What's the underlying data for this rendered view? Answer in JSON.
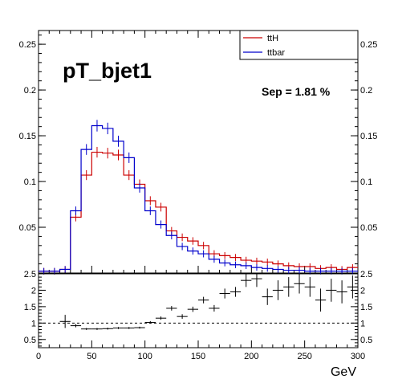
{
  "chart_data": [
    {
      "type": "line",
      "step": true,
      "title": "pT_bjet1",
      "annotation": "Sep = 1.81 %",
      "xlim": [
        0,
        300
      ],
      "ylim": [
        0,
        0.265
      ],
      "yticks": [
        "0.05",
        "0.1",
        "0.15",
        "0.2",
        "0.25"
      ],
      "yticks_right": [
        "0.05",
        "0.1",
        "0.15",
        "0.2",
        "0.25"
      ],
      "legend_position": "top-right",
      "bin_edges": [
        0,
        10,
        20,
        30,
        40,
        50,
        60,
        70,
        80,
        90,
        100,
        110,
        120,
        130,
        140,
        150,
        160,
        170,
        180,
        190,
        200,
        210,
        220,
        230,
        240,
        250,
        260,
        270,
        280,
        290,
        300
      ],
      "series": [
        {
          "name": "ttH",
          "color": "#cc0000",
          "values": [
            0.002,
            0.002,
            0.004,
            0.061,
            0.107,
            0.132,
            0.131,
            0.129,
            0.107,
            0.097,
            0.079,
            0.072,
            0.046,
            0.039,
            0.035,
            0.03,
            0.021,
            0.019,
            0.017,
            0.014,
            0.013,
            0.012,
            0.01,
            0.008,
            0.007,
            0.007,
            0.005,
            0.006,
            0.004,
            0.006
          ]
        },
        {
          "name": "ttbar",
          "color": "#0000cc",
          "values": [
            0.002,
            0.002,
            0.004,
            0.068,
            0.135,
            0.161,
            0.158,
            0.144,
            0.126,
            0.093,
            0.068,
            0.053,
            0.041,
            0.029,
            0.024,
            0.021,
            0.015,
            0.011,
            0.009,
            0.008,
            0.006,
            0.005,
            0.004,
            0.003,
            0.003,
            0.002,
            0.002,
            0.002,
            0.002,
            0.002
          ]
        }
      ]
    },
    {
      "type": "scatter",
      "title": "",
      "xlabel": "GeV",
      "xlim": [
        0,
        300
      ],
      "ylim": [
        0.25,
        2.5
      ],
      "xticks": [
        "0",
        "50",
        "100",
        "150",
        "200",
        "250",
        "300"
      ],
      "yticks": [
        "0.5",
        "1",
        "1.5",
        "2",
        "2.5"
      ],
      "yticks_right": [
        "0.5",
        "1",
        "1.5",
        "2",
        "2.5"
      ],
      "reference_line": 1,
      "x": [
        25,
        35,
        45,
        55,
        65,
        75,
        85,
        95,
        105,
        115,
        125,
        135,
        145,
        155,
        165,
        175,
        185,
        195,
        205,
        215,
        225,
        235,
        245,
        255,
        265,
        275,
        285,
        295
      ],
      "y": [
        1.05,
        0.92,
        0.82,
        0.82,
        0.83,
        0.85,
        0.85,
        0.86,
        1.02,
        1.15,
        1.45,
        1.2,
        1.42,
        1.7,
        1.45,
        1.9,
        1.95,
        2.3,
        2.35,
        1.8,
        2.0,
        2.1,
        2.2,
        2.1,
        1.7,
        2.0,
        1.95,
        2.1
      ],
      "yerr": [
        0.2,
        0.05,
        0.03,
        0.03,
        0.03,
        0.03,
        0.03,
        0.03,
        0.04,
        0.05,
        0.07,
        0.07,
        0.08,
        0.1,
        0.1,
        0.15,
        0.15,
        0.2,
        0.25,
        0.25,
        0.3,
        0.3,
        0.3,
        0.3,
        0.35,
        0.35,
        0.35,
        0.35
      ]
    }
  ]
}
